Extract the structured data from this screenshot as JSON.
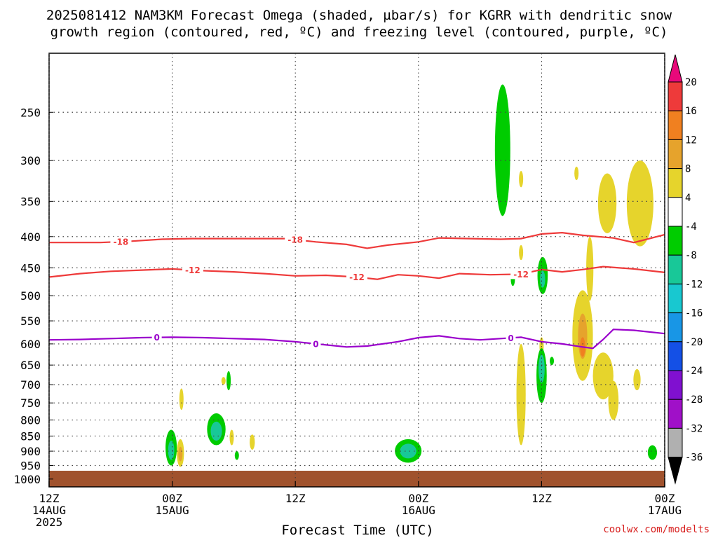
{
  "title_line1": "2025081412 NAM3KM Forecast Omega (shaded, µbar/s) for KGRR with dendritic snow",
  "title_line2": "growth region (contoured, red, ºC) and freezing level (contoured, purple, ºC)",
  "credit": "coolwx.com/modelts",
  "chart_data": {
    "type": "time-height-contour",
    "xlabel": "Forecast Time (UTC)",
    "xlim_hours": [
      0,
      60
    ],
    "x_ticks": [
      {
        "hour": 0,
        "line1": "12Z",
        "line2": "14AUG",
        "line3": "2025"
      },
      {
        "hour": 12,
        "line1": "00Z",
        "line2": "15AUG",
        "line3": ""
      },
      {
        "hour": 24,
        "line1": "12Z",
        "line2": "",
        "line3": ""
      },
      {
        "hour": 36,
        "line1": "00Z",
        "line2": "16AUG",
        "line3": ""
      },
      {
        "hour": 48,
        "line1": "12Z",
        "line2": "",
        "line3": ""
      },
      {
        "hour": 60,
        "line1": "00Z",
        "line2": "17AUG",
        "line3": ""
      }
    ],
    "y_axis": "pressure (mb), log scale",
    "ylim_mb": [
      200,
      1030
    ],
    "y_ticks_mb": [
      250,
      300,
      350,
      400,
      450,
      500,
      550,
      600,
      650,
      700,
      750,
      800,
      850,
      900,
      950,
      1000
    ],
    "grid": "dotted horizontal lines at each pressure tick",
    "ground_color": "#a0522d",
    "contours": [
      {
        "name": "-18",
        "color": "#ee3a3a",
        "labels_hours": [
          7,
          24
        ],
        "points": [
          [
            0,
            409
          ],
          [
            5,
            409
          ],
          [
            8,
            407
          ],
          [
            11,
            404
          ],
          [
            14,
            403
          ],
          [
            17,
            403
          ],
          [
            20,
            403
          ],
          [
            23,
            403
          ],
          [
            26,
            408
          ],
          [
            29,
            412
          ],
          [
            31,
            418
          ],
          [
            33,
            413
          ],
          [
            36,
            408
          ],
          [
            38,
            402
          ],
          [
            41,
            403
          ],
          [
            44,
            404
          ],
          [
            46,
            403
          ],
          [
            48,
            396
          ],
          [
            50,
            394
          ],
          [
            52,
            398
          ],
          [
            55,
            402
          ],
          [
            57,
            409
          ],
          [
            58,
            405
          ],
          [
            60,
            397
          ]
        ]
      },
      {
        "name": "-12",
        "color": "#ee3a3a",
        "labels_hours": [
          14,
          30,
          46
        ],
        "points": [
          [
            0,
            466
          ],
          [
            3,
            460
          ],
          [
            6,
            456
          ],
          [
            9,
            454
          ],
          [
            12,
            452
          ],
          [
            15,
            455
          ],
          [
            18,
            457
          ],
          [
            21,
            460
          ],
          [
            24,
            464
          ],
          [
            27,
            463
          ],
          [
            30,
            466
          ],
          [
            32,
            470
          ],
          [
            34,
            462
          ],
          [
            36,
            464
          ],
          [
            38,
            468
          ],
          [
            40,
            460
          ],
          [
            43,
            462
          ],
          [
            46,
            461
          ],
          [
            48,
            453
          ],
          [
            50,
            457
          ],
          [
            52,
            453
          ],
          [
            54,
            448
          ],
          [
            57,
            452
          ],
          [
            60,
            458
          ]
        ]
      },
      {
        "name": "0",
        "color": "#9a00cc",
        "labels_hours": [
          10.5,
          26,
          45
        ],
        "points": [
          [
            0,
            591
          ],
          [
            3,
            590
          ],
          [
            6,
            588
          ],
          [
            9,
            586
          ],
          [
            12,
            585
          ],
          [
            15,
            586
          ],
          [
            18,
            588
          ],
          [
            21,
            590
          ],
          [
            24,
            595
          ],
          [
            26,
            600
          ],
          [
            29,
            607
          ],
          [
            31,
            605
          ],
          [
            34,
            595
          ],
          [
            36,
            586
          ],
          [
            38,
            582
          ],
          [
            40,
            588
          ],
          [
            42,
            591
          ],
          [
            44,
            588
          ],
          [
            46,
            585
          ],
          [
            48,
            595
          ],
          [
            50,
            600
          ],
          [
            52,
            607
          ],
          [
            53,
            610
          ],
          [
            54,
            590
          ],
          [
            55,
            568
          ],
          [
            57,
            570
          ],
          [
            60,
            577
          ]
        ]
      }
    ],
    "omega_colorbar": {
      "unit": "µbar/s",
      "tick_labels": [
        "20",
        "16",
        "12",
        "8",
        "4",
        "-4",
        "-8",
        "-12",
        "-16",
        "-20",
        "-24",
        "-28",
        "-32",
        "-36"
      ],
      "colors": [
        "#e8097a",
        "#ee3a3a",
        "#f08020",
        "#e6a32c",
        "#e6d42c",
        "#ffffff",
        "#00cc00",
        "#18c898",
        "#18c8d0",
        "#1896e6",
        "#1450e6",
        "#8010d0",
        "#a010c8",
        "#b0b0b0",
        "#000000"
      ]
    },
    "omega_cells": [
      {
        "t": 44.2,
        "p": 280,
        "dt": 0.75,
        "dp0": 55,
        "dp1": 90,
        "level": -8
      },
      {
        "t": 46.0,
        "p": 322,
        "dt": 0.15,
        "dp0": 10,
        "dp1": 10,
        "level": 4
      },
      {
        "t": 51.4,
        "p": 315,
        "dt": 0.12,
        "dp0": 8,
        "dp1": 8,
        "level": 4
      },
      {
        "t": 57.6,
        "p": 355,
        "dt": 1.3,
        "dp0": 55,
        "dp1": 60,
        "level": 4
      },
      {
        "t": 54.4,
        "p": 345,
        "dt": 0.9,
        "dp0": 30,
        "dp1": 50,
        "level": 4
      },
      {
        "t": 46.0,
        "p": 425,
        "dt": 0.12,
        "dp0": 12,
        "dp1": 12,
        "level": 4
      },
      {
        "t": 48.1,
        "p": 467,
        "dt": 0.5,
        "dp0": 35,
        "dp1": 30,
        "level": -8
      },
      {
        "t": 48.1,
        "p": 470,
        "dt": 0.25,
        "dp0": 15,
        "dp1": 15,
        "level": -12
      },
      {
        "t": 45.2,
        "p": 470,
        "dt": 0.1,
        "dp0": 12,
        "dp1": 12,
        "level": -8
      },
      {
        "t": 52.7,
        "p": 460,
        "dt": 0.35,
        "dp0": 60,
        "dp1": 50,
        "level": 4
      },
      {
        "t": 52.0,
        "p": 590,
        "dt": 1.0,
        "dp0": 100,
        "dp1": 100,
        "level": 4
      },
      {
        "t": 52.0,
        "p": 585,
        "dt": 0.45,
        "dp0": 50,
        "dp1": 50,
        "level": 8
      },
      {
        "t": 52.0,
        "p": 610,
        "dt": 0.25,
        "dp0": 25,
        "dp1": 20,
        "level": 12
      },
      {
        "t": 54.0,
        "p": 680,
        "dt": 1.0,
        "dp0": 60,
        "dp1": 60,
        "level": 4
      },
      {
        "t": 55.0,
        "p": 750,
        "dt": 0.5,
        "dp0": 60,
        "dp1": 50,
        "level": 4
      },
      {
        "t": 57.3,
        "p": 690,
        "dt": 0.35,
        "dp0": 30,
        "dp1": 25,
        "level": 4
      },
      {
        "t": 48.0,
        "p": 605,
        "dt": 0.15,
        "dp0": 20,
        "dp1": 20,
        "level": 4
      },
      {
        "t": 49.0,
        "p": 640,
        "dt": 0.1,
        "dp0": 10,
        "dp1": 10,
        "level": -8
      },
      {
        "t": 46.0,
        "p": 720,
        "dt": 0.45,
        "dp0": 120,
        "dp1": 160,
        "level": 4
      },
      {
        "t": 48.0,
        "p": 680,
        "dt": 0.5,
        "dp0": 70,
        "dp1": 70,
        "level": -8
      },
      {
        "t": 48.0,
        "p": 660,
        "dt": 0.3,
        "dp0": 35,
        "dp1": 35,
        "level": -12
      },
      {
        "t": 58.8,
        "p": 905,
        "dt": 0.45,
        "dp0": 25,
        "dp1": 25,
        "level": -8
      },
      {
        "t": 35.0,
        "p": 900,
        "dt": 1.3,
        "dp0": 40,
        "dp1": 40,
        "level": -8
      },
      {
        "t": 35.0,
        "p": 900,
        "dt": 0.8,
        "dp0": 25,
        "dp1": 25,
        "level": -12
      },
      {
        "t": 11.9,
        "p": 890,
        "dt": 0.55,
        "dp0": 60,
        "dp1": 60,
        "level": -8
      },
      {
        "t": 11.9,
        "p": 900,
        "dt": 0.3,
        "dp0": 35,
        "dp1": 30,
        "level": -12
      },
      {
        "t": 12.8,
        "p": 910,
        "dt": 0.35,
        "dp0": 50,
        "dp1": 45,
        "level": 4
      },
      {
        "t": 12.8,
        "p": 910,
        "dt": 0.15,
        "dp0": 25,
        "dp1": 25,
        "level": 8
      },
      {
        "t": 12.9,
        "p": 740,
        "dt": 0.12,
        "dp0": 30,
        "dp1": 30,
        "level": 4
      },
      {
        "t": 16.3,
        "p": 830,
        "dt": 0.9,
        "dp0": 50,
        "dp1": 50,
        "level": -8
      },
      {
        "t": 16.3,
        "p": 835,
        "dt": 0.55,
        "dp0": 30,
        "dp1": 30,
        "level": -12
      },
      {
        "t": 17.8,
        "p": 855,
        "dt": 0.2,
        "dp0": 25,
        "dp1": 25,
        "level": 4
      },
      {
        "t": 18.3,
        "p": 915,
        "dt": 0.15,
        "dp0": 15,
        "dp1": 15,
        "level": -8
      },
      {
        "t": 19.8,
        "p": 870,
        "dt": 0.25,
        "dp0": 25,
        "dp1": 25,
        "level": 4
      },
      {
        "t": 17.5,
        "p": 690,
        "dt": 0.12,
        "dp0": 25,
        "dp1": 25,
        "level": -8
      },
      {
        "t": 17.0,
        "p": 690,
        "dt": 0.12,
        "dp0": 10,
        "dp1": 10,
        "level": 4
      }
    ]
  }
}
